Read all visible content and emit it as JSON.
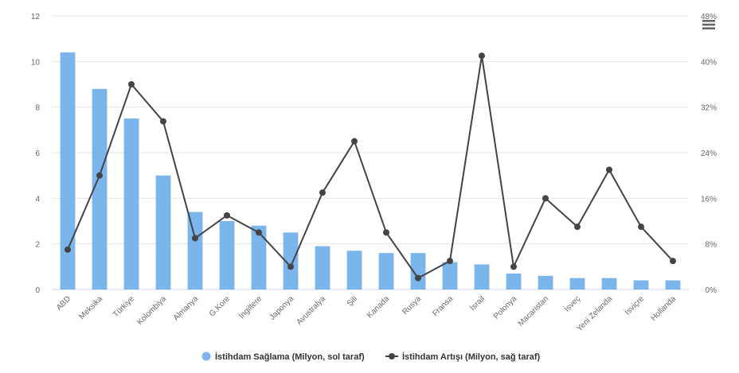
{
  "chart_data": {
    "type": "bar",
    "title": "",
    "xlabel": "",
    "ylabel": "",
    "categories": [
      "ABD",
      "Meksika",
      "Türkiye",
      "Kolombiya",
      "Almanya",
      "G.Kore",
      "İngiltere",
      "Japonya",
      "Avustralya",
      "Şili",
      "Kanada",
      "Rusya",
      "Fransa",
      "İsrail",
      "Polonya",
      "Macaristan",
      "İsveç",
      "Yeni Zelanda",
      "İsviçre",
      "Hollanda"
    ],
    "series": [
      {
        "name": "İstihdam Sağlama (Milyon, sol taraf)",
        "type": "bar",
        "axis": "left",
        "color": "#7cb5ec",
        "values": [
          10.4,
          8.8,
          7.5,
          5.0,
          3.4,
          3.0,
          2.8,
          2.5,
          1.9,
          1.7,
          1.6,
          1.6,
          1.2,
          1.1,
          0.7,
          0.6,
          0.5,
          0.5,
          0.4,
          0.4
        ]
      },
      {
        "name": "İstihdam Artışı (Milyon, sağ taraf)",
        "type": "line",
        "axis": "right",
        "color": "#434348",
        "values": [
          7,
          20,
          36,
          29.5,
          9,
          13,
          10,
          4,
          17,
          26,
          10,
          2,
          5,
          41,
          4,
          16,
          11,
          21,
          11,
          5
        ]
      }
    ],
    "y_left": {
      "min": 0,
      "max": 12,
      "ticks": [
        0,
        2,
        4,
        6,
        8,
        10,
        12
      ],
      "tick_labels": [
        "0",
        "2",
        "4",
        "6",
        "8",
        "10",
        "12"
      ]
    },
    "y_right": {
      "min": 0,
      "max": 48,
      "ticks": [
        0,
        8,
        16,
        24,
        32,
        40,
        48
      ],
      "tick_labels": [
        "0%",
        "8%",
        "16%",
        "24%",
        "32%",
        "40%",
        "48%"
      ]
    },
    "grid": true,
    "legend_position": "bottom-center"
  },
  "menu": {
    "icon": "hamburger-menu-icon"
  }
}
